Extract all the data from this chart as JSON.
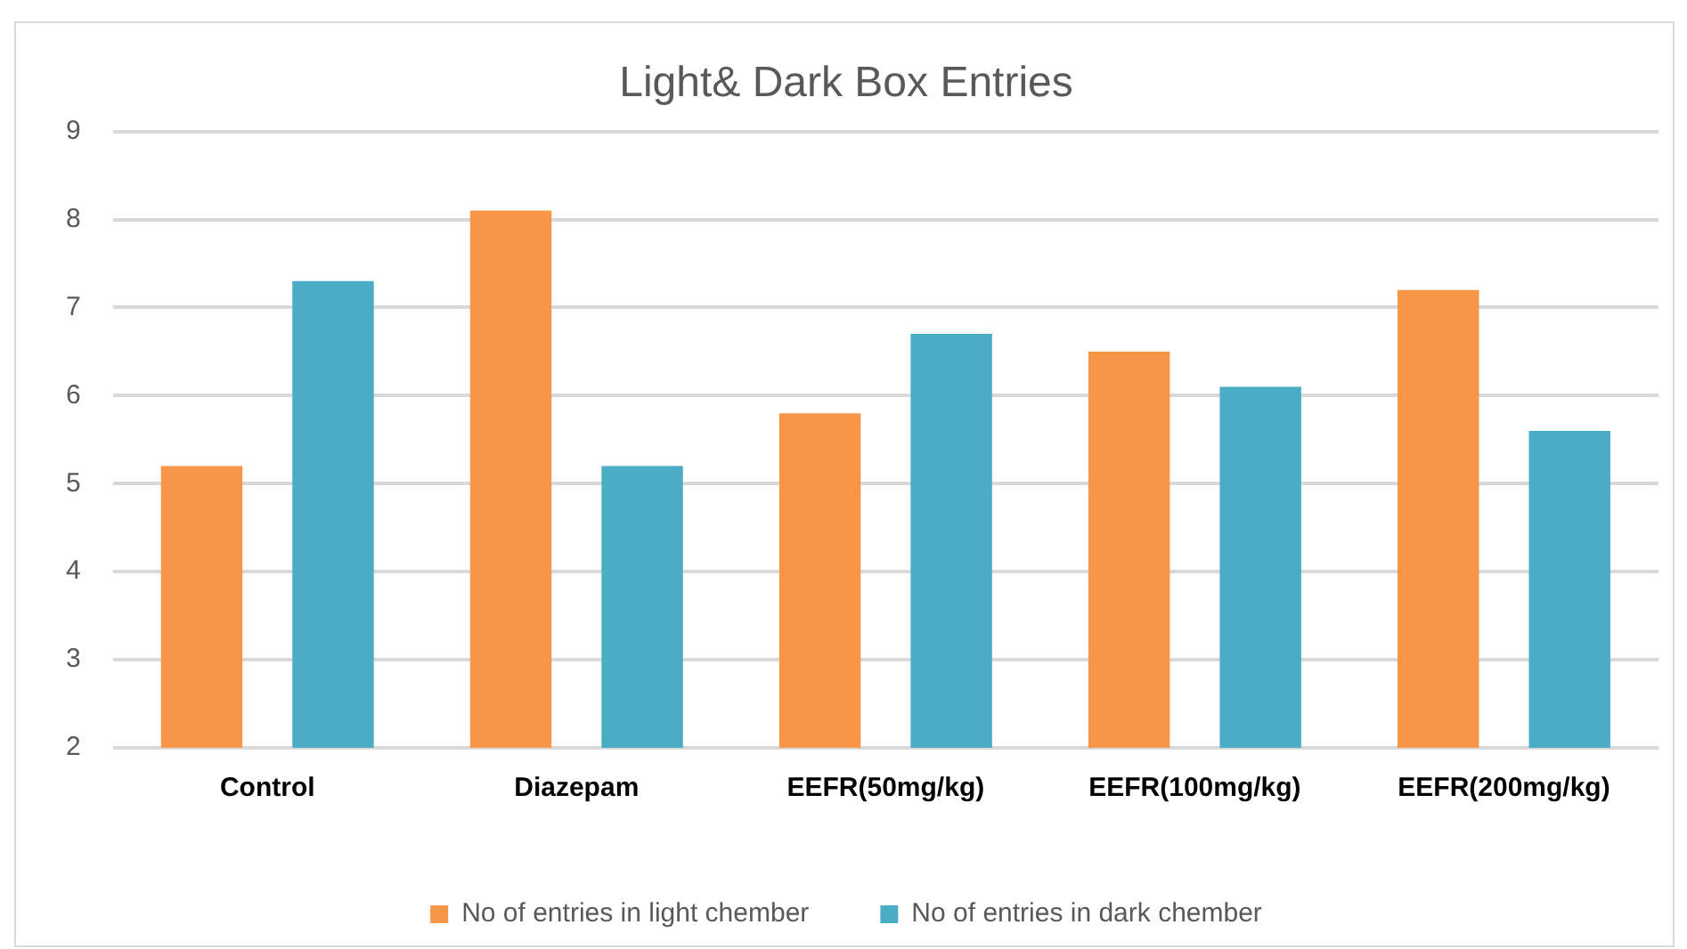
{
  "chart_data": {
    "type": "bar",
    "title": "Light& Dark Box Entries",
    "categories": [
      "Control",
      "Diazepam",
      "EEFR(50mg/kg)",
      "EEFR(100mg/kg)",
      "EEFR(200mg/kg)"
    ],
    "series": [
      {
        "name": "No of entries in light chember",
        "color": "#f79646",
        "values": [
          5.2,
          8.1,
          5.8,
          6.5,
          7.2
        ]
      },
      {
        "name": "No of entries in dark chember",
        "color": "#4bacc6",
        "values": [
          7.3,
          5.2,
          6.7,
          6.1,
          5.6
        ]
      }
    ],
    "ylim": [
      2,
      9
    ],
    "yticks": [
      2,
      3,
      4,
      5,
      6,
      7,
      8,
      9
    ],
    "grid": "y",
    "legend": "bottom"
  }
}
